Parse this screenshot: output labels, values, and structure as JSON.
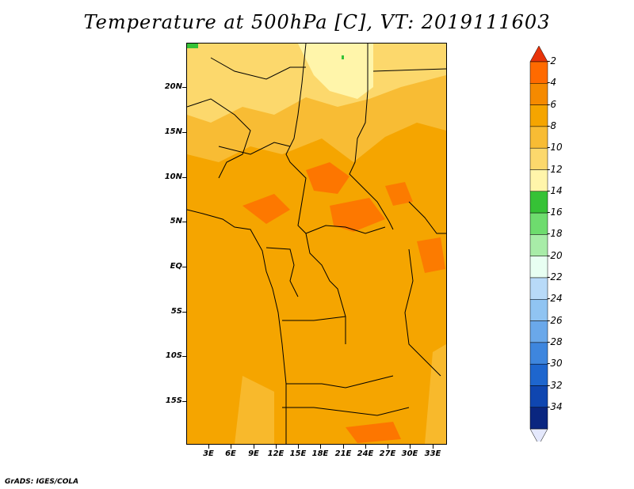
{
  "title": "Temperature at 500hPa [C], VT: 2019111603",
  "credit": "GrADS: IGES/COLA",
  "map": {
    "projection": "lat-lon",
    "lon_range": [
      0,
      35
    ],
    "lat_range": [
      -20,
      25
    ],
    "lat_ticks": [
      "20N",
      "15N",
      "10N",
      "5N",
      "EQ",
      "5S",
      "10S",
      "15S"
    ],
    "lon_ticks": [
      "3E",
      "6E",
      "9E",
      "12E",
      "15E",
      "18E",
      "21E",
      "24E",
      "27E",
      "30E",
      "33E"
    ]
  },
  "colorbar": {
    "labels": [
      "-2",
      "-4",
      "-6",
      "-8",
      "-10",
      "-12",
      "-14",
      "-16",
      "-18",
      "-20",
      "-22",
      "-24",
      "-26",
      "-28",
      "-30",
      "-32",
      "-34"
    ],
    "colors": [
      "#FF6A00",
      "#F58A00",
      "#F5A500",
      "#F8BC34",
      "#FCD86C",
      "#FFF5AA",
      "#36C236",
      "#6EDC6E",
      "#A8ECA8",
      "#E8FFF2",
      "#B8DAF8",
      "#90C4F2",
      "#6AA8EA",
      "#3E86DE",
      "#1E66CE",
      "#0F46B0",
      "#0A2680",
      "#0A0A60"
    ],
    "top_arrow_color": "#E8340A",
    "bottom_arrow_color": "#E4E8FC"
  }
}
